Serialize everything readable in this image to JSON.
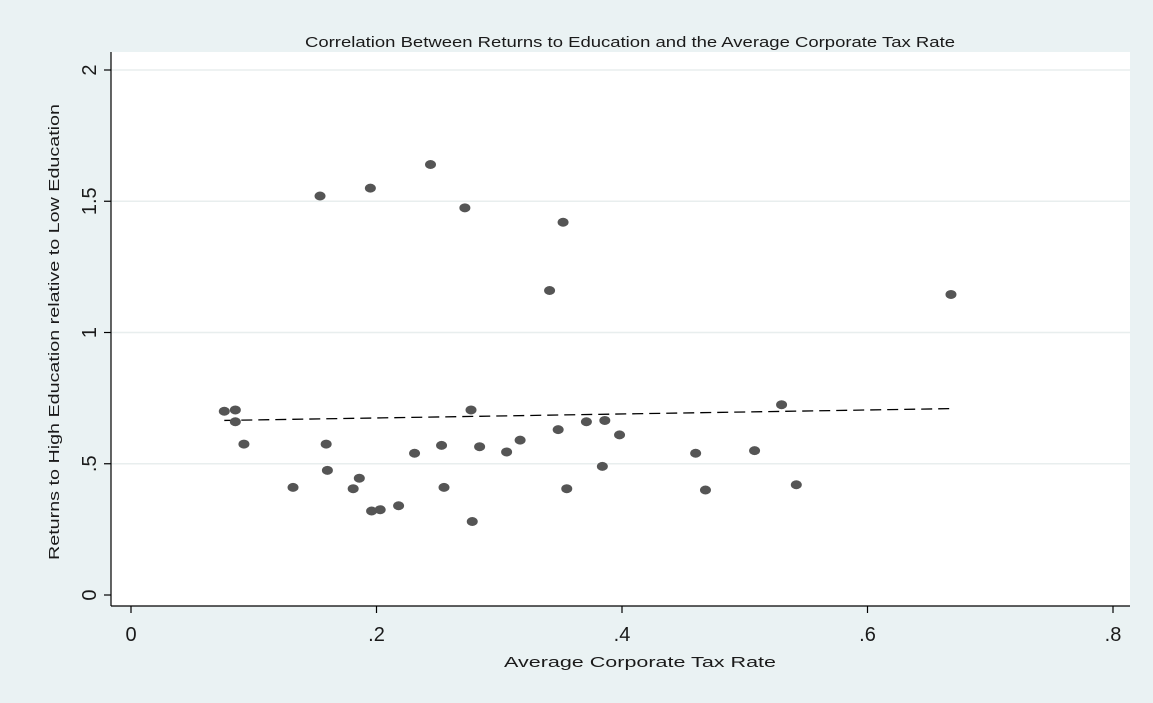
{
  "chart_data": {
    "type": "scatter",
    "title": "Correlation Between Returns to Education and the Average Corporate Tax Rate",
    "xlabel": "Average Corporate Tax Rate",
    "ylabel": "Returns to High Education relative to Low Education",
    "xlim": [
      0,
      0.8
    ],
    "ylim": [
      0,
      2
    ],
    "x_ticks": [
      0,
      0.2,
      0.4,
      0.6,
      0.8
    ],
    "x_tick_labels": [
      "0",
      ".2",
      ".4",
      ".6",
      ".8"
    ],
    "y_ticks": [
      0,
      0.5,
      1,
      1.5,
      2
    ],
    "y_tick_labels": [
      "0",
      ".5",
      "1",
      "1.5",
      "2"
    ],
    "grid": "horizontal",
    "legend": "none",
    "colors": {
      "background": "#eaf2f3",
      "plot_background": "#ffffff",
      "points": "#555555",
      "fit_line": "#000000",
      "grid": "#e8eeee"
    },
    "series": [
      {
        "type": "scatter",
        "points": [
          [
            0.076,
            0.7
          ],
          [
            0.085,
            0.705
          ],
          [
            0.085,
            0.66
          ],
          [
            0.092,
            0.575
          ],
          [
            0.132,
            0.41
          ],
          [
            0.154,
            1.52
          ],
          [
            0.159,
            0.575
          ],
          [
            0.16,
            0.475
          ],
          [
            0.181,
            0.405
          ],
          [
            0.186,
            0.445
          ],
          [
            0.195,
            1.55
          ],
          [
            0.196,
            0.32
          ],
          [
            0.203,
            0.325
          ],
          [
            0.218,
            0.34
          ],
          [
            0.231,
            0.54
          ],
          [
            0.244,
            1.64
          ],
          [
            0.253,
            0.57
          ],
          [
            0.255,
            0.41
          ],
          [
            0.272,
            1.475
          ],
          [
            0.277,
            0.705
          ],
          [
            0.278,
            0.28
          ],
          [
            0.284,
            0.565
          ],
          [
            0.306,
            0.545
          ],
          [
            0.317,
            0.59
          ],
          [
            0.341,
            1.16
          ],
          [
            0.348,
            0.63
          ],
          [
            0.352,
            1.42
          ],
          [
            0.355,
            0.405
          ],
          [
            0.371,
            0.66
          ],
          [
            0.384,
            0.49
          ],
          [
            0.386,
            0.665
          ],
          [
            0.398,
            0.61
          ],
          [
            0.46,
            0.54
          ],
          [
            0.468,
            0.4
          ],
          [
            0.508,
            0.55
          ],
          [
            0.53,
            0.725
          ],
          [
            0.542,
            0.42
          ],
          [
            0.668,
            1.145
          ]
        ]
      },
      {
        "type": "line",
        "style": "dashed",
        "points": [
          [
            0.076,
            0.665
          ],
          [
            0.668,
            0.71
          ]
        ]
      }
    ]
  }
}
